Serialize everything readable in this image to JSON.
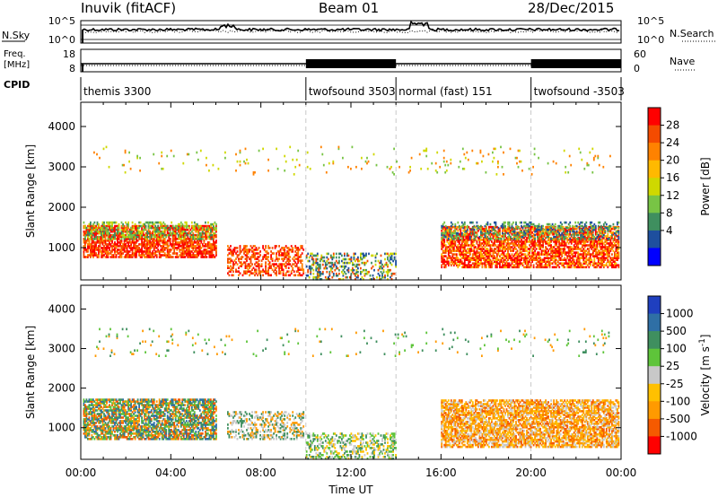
{
  "header": {
    "title": "Inuvik (fitACF)",
    "beam": "Beam 01",
    "date": "28/Dec/2015"
  },
  "noise_panel": {
    "left_label": "N.Sky",
    "left_ticks": [
      "10^5",
      "10^0"
    ],
    "right_label": "N.Search",
    "right_ticks": [
      "10^5",
      "10^0"
    ]
  },
  "freq_panel": {
    "left_label_1": "Freq.",
    "left_label_2": "[MHz]",
    "left_ticks": [
      "18",
      "8"
    ],
    "right_label": "Nave",
    "right_ticks": [
      "60",
      "0"
    ]
  },
  "cpid": {
    "label": "CPID",
    "segments": [
      {
        "name": "themis 3300",
        "start_hour": 0
      },
      {
        "name": "twofsound 3503",
        "start_hour": 10
      },
      {
        "name": "normal (fast) 151",
        "start_hour": 14
      },
      {
        "name": "twofsound -3503",
        "start_hour": 20
      }
    ]
  },
  "chart_data": [
    {
      "type": "heatmap",
      "title": "",
      "xlabel": "",
      "ylabel": "Slant Range [km]",
      "xlim_hours": [
        0,
        24
      ],
      "ylim": [
        200,
        4600
      ],
      "y_ticks": [
        1000,
        2000,
        3000,
        4000
      ],
      "colorbar": {
        "label": "Power [dB]",
        "ticks": [
          "28",
          "24",
          "20",
          "16",
          "12",
          "8",
          "4"
        ],
        "colors": [
          "#ff0000",
          "#f44b00",
          "#ff8200",
          "#ffb900",
          "#cfd800",
          "#78c445",
          "#3f8f5f",
          "#1e4f9e",
          "#0000ff"
        ]
      },
      "description_regions": [
        {
          "t_start": 0.1,
          "t_end": 6.0,
          "r_min": 750,
          "r_max": 1650,
          "level": "high"
        },
        {
          "t_start": 6.5,
          "t_end": 9.9,
          "r_min": 300,
          "r_max": 1100,
          "level": "high"
        },
        {
          "t_start": 10.0,
          "t_end": 14.0,
          "r_min": 200,
          "r_max": 900,
          "level": "mixed"
        },
        {
          "t_start": 16.0,
          "t_end": 23.9,
          "r_min": 450,
          "r_max": 1600,
          "level": "high"
        }
      ]
    },
    {
      "type": "heatmap",
      "title": "",
      "xlabel": "Time UT",
      "ylabel": "Slant Range [km]",
      "xlim_hours": [
        0,
        24
      ],
      "ylim": [
        200,
        4600
      ],
      "y_ticks": [
        1000,
        2000,
        3000,
        4000
      ],
      "x_ticks": [
        "00:00",
        "04:00",
        "08:00",
        "12:00",
        "16:00",
        "20:00",
        "00:00"
      ],
      "colorbar": {
        "label": "Velocity [m s^-1]",
        "ticks": [
          "1000",
          "500",
          "100",
          "25",
          "-25",
          "-100",
          "-500",
          "-1000"
        ],
        "colors": [
          "#1f3fbf",
          "#2f6fa5",
          "#3f8f5f",
          "#5ec43a",
          "#c8c8c8",
          "#ffc000",
          "#ff9a00",
          "#f55a00",
          "#ff0000"
        ]
      },
      "description_regions": [
        {
          "t_start": 0.1,
          "t_end": 9.9,
          "r_min": 700,
          "r_max": 1700,
          "level": "near zero / slightly negative"
        },
        {
          "t_start": 10.0,
          "t_end": 14.0,
          "r_min": 200,
          "r_max": 900,
          "level": "ground scatter"
        },
        {
          "t_start": 16.0,
          "t_end": 23.9,
          "r_min": 500,
          "r_max": 1700,
          "level": "negative (-100 to -500)"
        }
      ]
    }
  ],
  "noise_series": {
    "sky_level_description": "roughly constant near upper axis with spikes near 06:30 and 15:00",
    "freq_description": "flat near 11 MHz; Nave high-frequency oscillation during 10:00-14:00 and 20:00-24:00"
  },
  "layout_text": {
    "power_label": "Power [dB]",
    "velocity_label_main": "Velocity [m s",
    "velocity_label_exp": "-1",
    "velocity_label_end": "]"
  }
}
